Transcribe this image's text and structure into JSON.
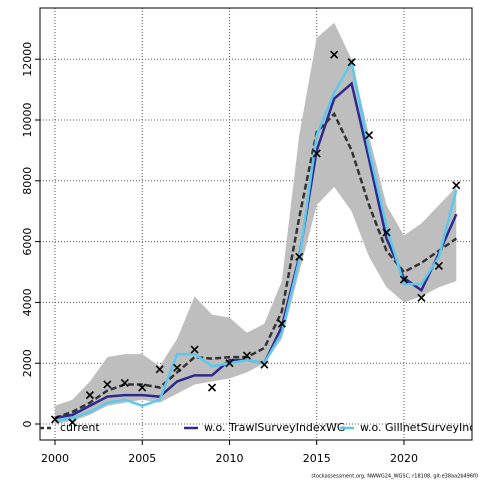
{
  "chart_data": {
    "type": "line",
    "x": [
      2000,
      2001,
      2002,
      2003,
      2004,
      2005,
      2006,
      2007,
      2008,
      2009,
      2010,
      2011,
      2012,
      2013,
      2014,
      2015,
      2016,
      2017,
      2018,
      2019,
      2020,
      2021,
      2022,
      2023
    ],
    "band": {
      "color": "#bebebe",
      "lower": [
        0,
        100,
        300,
        600,
        700,
        800,
        700,
        1000,
        1300,
        1400,
        1500,
        1700,
        2000,
        2800,
        5000,
        7200,
        7800,
        7000,
        5500,
        4500,
        4000,
        4200,
        4500,
        4700
      ],
      "upper": [
        600,
        800,
        1400,
        2200,
        2300,
        2300,
        1900,
        2800,
        4200,
        3600,
        3500,
        3000,
        3300,
        4700,
        9500,
        12700,
        13200,
        12000,
        9500,
        7200,
        6200,
        6600,
        7200,
        7800
      ]
    },
    "series": [
      {
        "name": "current",
        "color": "#333333",
        "dash": true,
        "values": [
          200,
          400,
          700,
          1100,
          1300,
          1300,
          1200,
          1700,
          2200,
          2150,
          2200,
          2200,
          2500,
          3700,
          6800,
          9600,
          10200,
          9000,
          7200,
          5700,
          5000,
          5300,
          5700,
          6100
        ]
      },
      {
        "name": "w.o. TrawlSurveyIndexWG",
        "color": "#2e2a8c",
        "dash": false,
        "values": [
          200,
          300,
          600,
          900,
          950,
          950,
          900,
          1400,
          1600,
          1600,
          2100,
          2100,
          2000,
          3200,
          5500,
          9000,
          10700,
          11200,
          8700,
          6100,
          4800,
          4400,
          5600,
          6900
        ]
      },
      {
        "name": "w.o. GillnetSurveyIndex",
        "color": "#5bc8ec",
        "dash": false,
        "values": [
          100,
          200,
          400,
          700,
          800,
          600,
          800,
          2300,
          2300,
          1900,
          2000,
          2100,
          2000,
          3000,
          5400,
          9500,
          10900,
          11900,
          9000,
          6500,
          4600,
          4600,
          5500,
          7700
        ]
      }
    ],
    "points": {
      "color": "#000000",
      "values": [
        150,
        50,
        950,
        1300,
        1350,
        1200,
        1800,
        1850,
        2450,
        1200,
        2000,
        2250,
        1950,
        3300,
        5500,
        8900,
        12150,
        11900,
        9500,
        6300,
        4750,
        4150,
        5200,
        7850
      ]
    },
    "xlim": [
      1999.14,
      2023.9
    ],
    "xticks": [
      2000,
      2005,
      2010,
      2015,
      2020
    ],
    "ylim": [
      -526,
      13684
    ],
    "yticks": [
      0,
      2000,
      4000,
      6000,
      8000,
      10000,
      12000
    ],
    "grid": true,
    "legend": "bottom",
    "footer": "stockassessment.org, NWWG24_WGSC, r18108, git:e38aa2b496f0"
  }
}
